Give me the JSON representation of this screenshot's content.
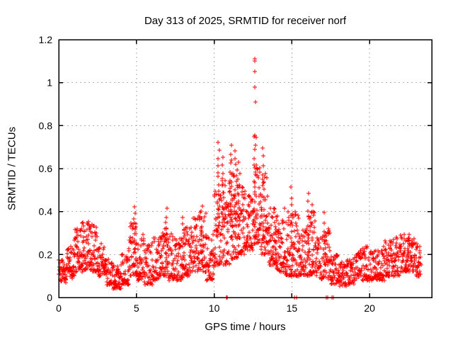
{
  "chart_data": {
    "type": "scatter",
    "title": "Day 313 of 2025, SRMTID for receiver norf",
    "xlabel": "GPS time / hours",
    "ylabel": "SRMTID / TECUs",
    "xlim": [
      0,
      24
    ],
    "ylim": [
      0,
      1.2
    ],
    "xticks": {
      "values": [
        0,
        5,
        10,
        15,
        20
      ],
      "labels": [
        "0",
        "5",
        "10",
        "15",
        "20"
      ]
    },
    "yticks": {
      "values": [
        0,
        0.2,
        0.4,
        0.6,
        0.8,
        1.0,
        1.2
      ],
      "labels": [
        "0",
        "0.2",
        "0.4",
        "0.6",
        "0.8",
        "1",
        "1.2"
      ]
    },
    "grid": true,
    "grid_color": "#b0b0b0",
    "axis_color": "#000000",
    "background_color": "#ffffff",
    "legend": "none",
    "marker": {
      "shape": "plus",
      "color": "#ff0000",
      "size": 7
    },
    "x_data_range": [
      0.0,
      23.3
    ],
    "y_data_max": 1.11,
    "envelope_bins": [
      [
        0.0,
        0.5,
        0.07,
        0.18,
        40
      ],
      [
        0.5,
        1.0,
        0.09,
        0.24,
        45
      ],
      [
        1.0,
        1.5,
        0.12,
        0.32,
        50
      ],
      [
        1.5,
        2.0,
        0.13,
        0.36,
        52
      ],
      [
        2.0,
        2.5,
        0.12,
        0.34,
        50
      ],
      [
        2.5,
        3.0,
        0.1,
        0.26,
        46
      ],
      [
        3.0,
        3.5,
        0.06,
        0.18,
        42
      ],
      [
        3.5,
        4.0,
        0.04,
        0.15,
        40
      ],
      [
        4.0,
        4.5,
        0.06,
        0.22,
        42
      ],
      [
        4.5,
        5.0,
        0.1,
        0.35,
        46
      ],
      [
        5.0,
        5.5,
        0.08,
        0.3,
        46
      ],
      [
        5.5,
        6.0,
        0.06,
        0.25,
        42
      ],
      [
        6.0,
        6.5,
        0.08,
        0.28,
        44
      ],
      [
        6.5,
        7.0,
        0.1,
        0.34,
        46
      ],
      [
        7.0,
        7.5,
        0.08,
        0.3,
        46
      ],
      [
        7.5,
        8.0,
        0.08,
        0.28,
        46
      ],
      [
        8.0,
        8.5,
        0.1,
        0.33,
        46
      ],
      [
        8.5,
        9.0,
        0.12,
        0.38,
        46
      ],
      [
        9.0,
        9.5,
        0.12,
        0.4,
        46
      ],
      [
        9.5,
        10.0,
        0.08,
        0.3,
        46
      ],
      [
        10.0,
        10.5,
        0.15,
        0.5,
        52
      ],
      [
        10.5,
        11.0,
        0.15,
        0.55,
        55
      ],
      [
        11.0,
        11.5,
        0.18,
        0.6,
        55
      ],
      [
        11.5,
        12.0,
        0.2,
        0.52,
        52
      ],
      [
        12.0,
        12.5,
        0.22,
        0.48,
        50
      ],
      [
        12.5,
        13.0,
        0.25,
        0.62,
        55
      ],
      [
        13.0,
        13.5,
        0.2,
        0.58,
        52
      ],
      [
        13.5,
        14.0,
        0.15,
        0.42,
        50
      ],
      [
        14.0,
        14.5,
        0.12,
        0.38,
        50
      ],
      [
        14.5,
        15.0,
        0.1,
        0.42,
        50
      ],
      [
        15.0,
        15.5,
        0.1,
        0.4,
        50
      ],
      [
        15.5,
        16.0,
        0.1,
        0.33,
        46
      ],
      [
        16.0,
        16.5,
        0.1,
        0.4,
        46
      ],
      [
        16.5,
        17.0,
        0.08,
        0.28,
        44
      ],
      [
        17.0,
        17.5,
        0.08,
        0.32,
        44
      ],
      [
        17.5,
        18.0,
        0.06,
        0.2,
        42
      ],
      [
        18.0,
        18.5,
        0.05,
        0.17,
        40
      ],
      [
        18.5,
        19.0,
        0.06,
        0.18,
        40
      ],
      [
        19.0,
        19.5,
        0.08,
        0.22,
        40
      ],
      [
        19.5,
        20.0,
        0.08,
        0.24,
        40
      ],
      [
        20.0,
        20.5,
        0.08,
        0.22,
        40
      ],
      [
        20.5,
        21.0,
        0.08,
        0.24,
        40
      ],
      [
        21.0,
        21.5,
        0.1,
        0.27,
        42
      ],
      [
        21.5,
        22.0,
        0.1,
        0.28,
        44
      ],
      [
        22.0,
        22.5,
        0.12,
        0.3,
        46
      ],
      [
        22.5,
        23.0,
        0.12,
        0.28,
        46
      ],
      [
        23.0,
        23.3,
        0.1,
        0.25,
        26
      ]
    ],
    "spike_columns": [
      {
        "x": 4.9,
        "base": 0.18,
        "top": 0.42,
        "n": 10
      },
      {
        "x": 6.9,
        "base": 0.15,
        "top": 0.41,
        "n": 10
      },
      {
        "x": 8.0,
        "base": 0.15,
        "top": 0.37,
        "n": 8
      },
      {
        "x": 9.2,
        "base": 0.15,
        "top": 0.43,
        "n": 10
      },
      {
        "x": 10.3,
        "base": 0.3,
        "top": 0.72,
        "n": 14
      },
      {
        "x": 10.55,
        "base": 0.3,
        "top": 0.65,
        "n": 12
      },
      {
        "x": 11.1,
        "base": 0.35,
        "top": 0.7,
        "n": 14
      },
      {
        "x": 11.35,
        "base": 0.3,
        "top": 0.68,
        "n": 12
      },
      {
        "x": 11.6,
        "base": 0.3,
        "top": 0.62,
        "n": 10
      },
      {
        "x": 12.62,
        "base": 0.3,
        "top": 0.75,
        "n": 14
      },
      {
        "x": 13.15,
        "base": 0.25,
        "top": 0.7,
        "n": 12
      },
      {
        "x": 13.95,
        "base": 0.2,
        "top": 0.41,
        "n": 8
      },
      {
        "x": 15.0,
        "base": 0.15,
        "top": 0.51,
        "n": 10
      },
      {
        "x": 16.05,
        "base": 0.15,
        "top": 0.48,
        "n": 10
      },
      {
        "x": 16.35,
        "base": 0.15,
        "top": 0.43,
        "n": 8
      },
      {
        "x": 17.1,
        "base": 0.12,
        "top": 0.39,
        "n": 8
      },
      {
        "x": 22.5,
        "base": 0.15,
        "top": 0.3,
        "n": 8
      }
    ],
    "outlier_points": [
      [
        12.6,
        1.11
      ],
      [
        12.62,
        1.1
      ],
      [
        12.63,
        1.05
      ],
      [
        12.6,
        0.98
      ],
      [
        12.65,
        0.91
      ],
      [
        12.62,
        0.755
      ],
      [
        12.58,
        0.75
      ]
    ],
    "zero_value_xs": [
      10.8,
      10.85,
      15.18,
      15.3,
      17.22,
      17.3,
      17.58,
      17.68
    ]
  }
}
